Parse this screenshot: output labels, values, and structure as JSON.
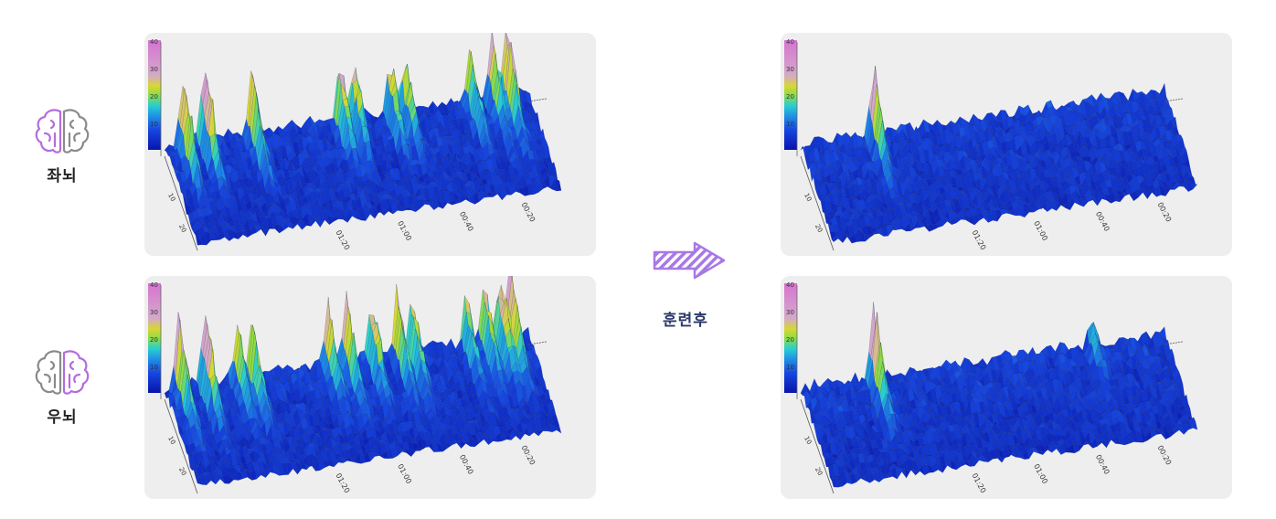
{
  "sides": [
    {
      "label": "좌뇌",
      "icon": "brain-left-highlight-icon"
    },
    {
      "label": "우뇌",
      "icon": "brain-right-highlight-icon"
    }
  ],
  "transition": {
    "label": "훈련후",
    "icon": "hatched-arrow-right-icon"
  },
  "colors": {
    "highlight": "#b36be0",
    "neutral": "#8a8a8a",
    "arrow": "#a978e6"
  },
  "chart_data": [
    {
      "type": "surface3d",
      "panel": "before-left",
      "colorbar_ticks": [
        "40",
        "30",
        "20",
        "10"
      ],
      "time_ticks": [
        "01:20",
        "01:00",
        "00:40",
        "00:20"
      ],
      "depth_ticks": [
        "10",
        "20"
      ],
      "peaks": [
        [
          0.05,
          40
        ],
        [
          0.11,
          42
        ],
        [
          0.24,
          36
        ],
        [
          0.48,
          32
        ],
        [
          0.52,
          30
        ],
        [
          0.62,
          28
        ],
        [
          0.66,
          30
        ],
        [
          0.84,
          28
        ],
        [
          0.9,
          32
        ],
        [
          0.94,
          42
        ]
      ],
      "zlim": [
        0,
        40
      ]
    },
    {
      "type": "surface3d",
      "panel": "after-left",
      "colorbar_ticks": [
        "40",
        "30",
        "20",
        "10"
      ],
      "time_ticks": [
        "01:20",
        "01:00",
        "00:40",
        "00:20"
      ],
      "depth_ticks": [
        "10",
        "20"
      ],
      "peaks": [
        [
          0.2,
          38
        ]
      ],
      "zlim": [
        0,
        40
      ]
    },
    {
      "type": "surface3d",
      "panel": "before-right",
      "colorbar_ticks": [
        "40",
        "30",
        "20",
        "10"
      ],
      "time_ticks": [
        "01:20",
        "01:00",
        "00:40",
        "00:20"
      ],
      "depth_ticks": [
        "10",
        "20"
      ],
      "peaks": [
        [
          0.04,
          38
        ],
        [
          0.11,
          40
        ],
        [
          0.2,
          28
        ],
        [
          0.24,
          32
        ],
        [
          0.45,
          30
        ],
        [
          0.5,
          32
        ],
        [
          0.57,
          28
        ],
        [
          0.64,
          32
        ],
        [
          0.68,
          30
        ],
        [
          0.83,
          28
        ],
        [
          0.88,
          30
        ],
        [
          0.92,
          36
        ],
        [
          0.95,
          40
        ]
      ],
      "zlim": [
        0,
        40
      ]
    },
    {
      "type": "surface3d",
      "panel": "after-right",
      "colorbar_ticks": [
        "40",
        "30",
        "20",
        "10"
      ],
      "time_ticks": [
        "01:20",
        "01:00",
        "00:40",
        "00:20"
      ],
      "depth_ticks": [
        "10",
        "20"
      ],
      "peaks": [
        [
          0.2,
          40
        ],
        [
          0.8,
          14
        ]
      ],
      "zlim": [
        0,
        40
      ]
    }
  ]
}
